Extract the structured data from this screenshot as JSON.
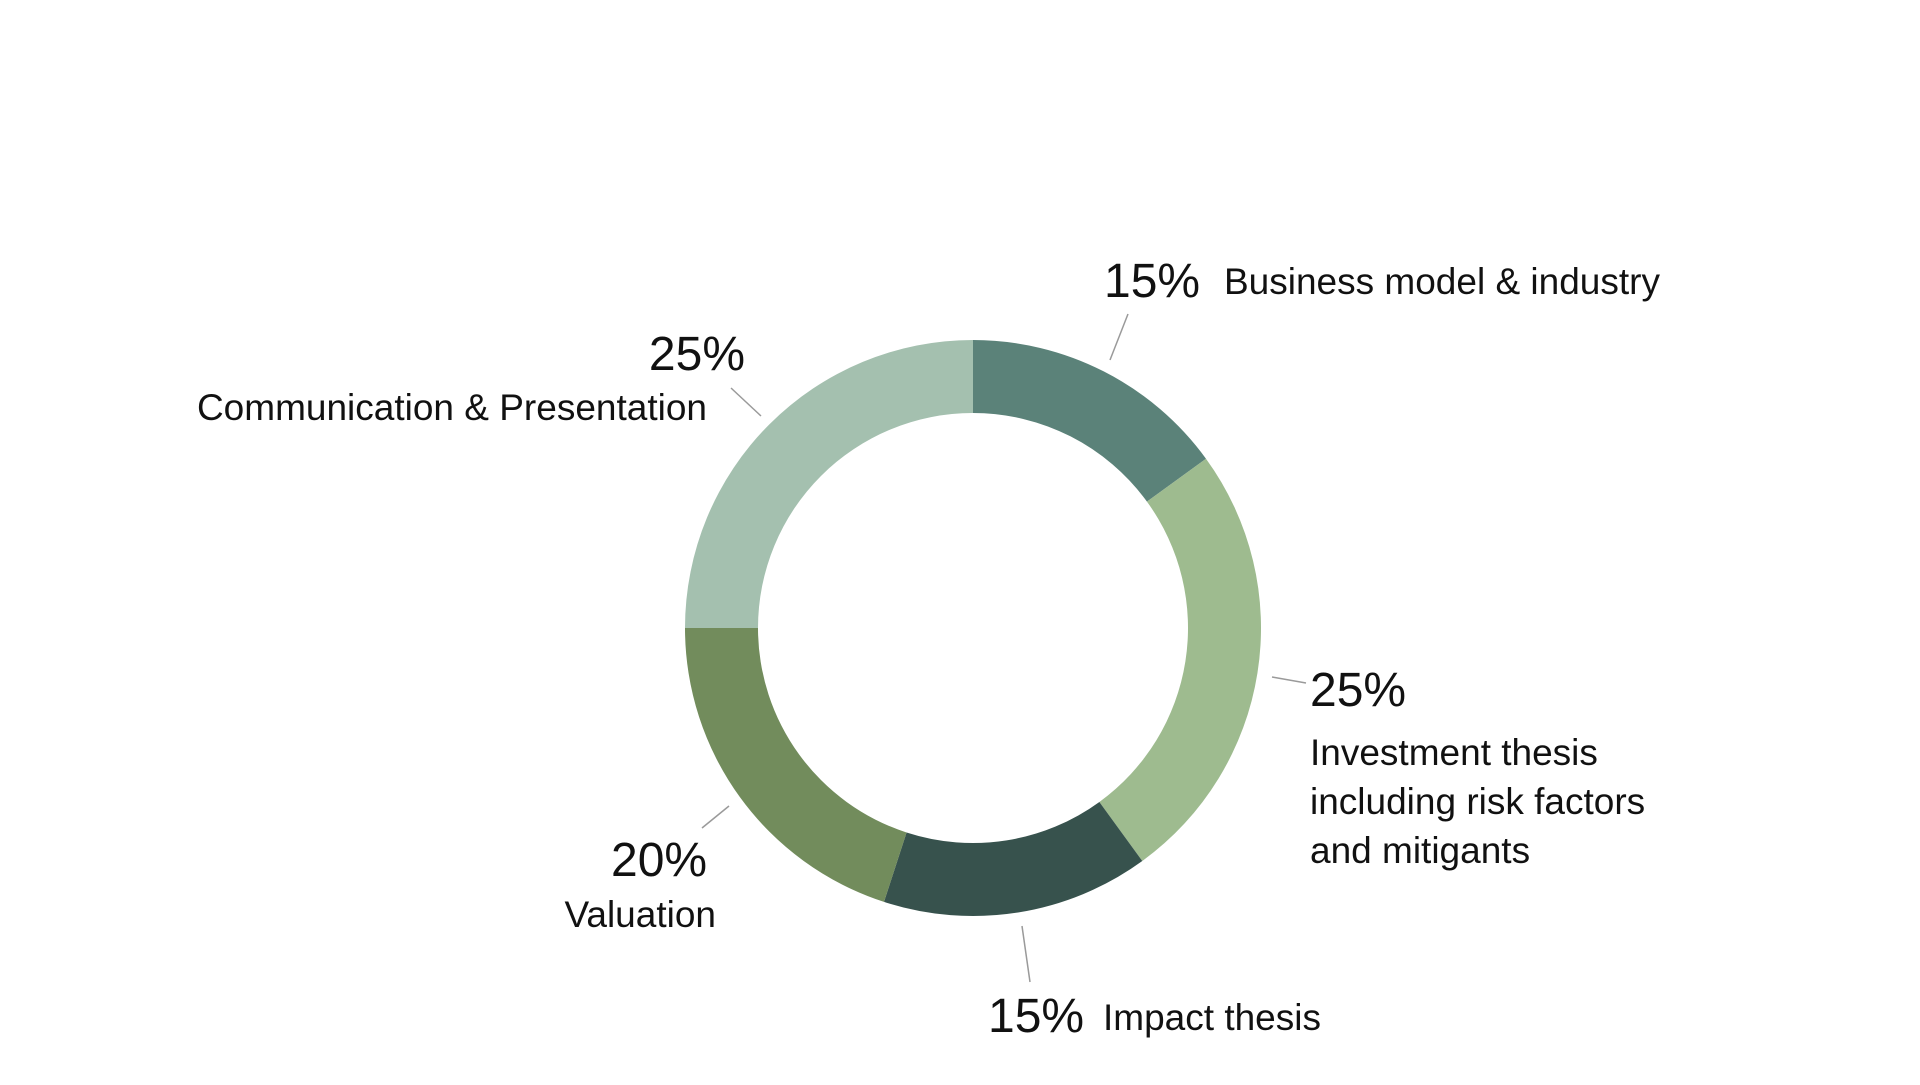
{
  "chart_data": {
    "type": "pie",
    "variant": "donut",
    "title": "",
    "slices": [
      {
        "label": "Business model & industry",
        "value": 15,
        "value_label": "15%",
        "color": "#5b8279"
      },
      {
        "label": "Investment thesis including risk factors and mitigants",
        "value": 25,
        "value_label": "25%",
        "color": "#9ebb8f"
      },
      {
        "label": "Impact thesis",
        "value": 15,
        "value_label": "15%",
        "color": "#37524d"
      },
      {
        "label": "Valuation",
        "value": 20,
        "value_label": "20%",
        "color": "#728c5c"
      },
      {
        "label": "Communication & Presentation",
        "value": 25,
        "value_label": "25%",
        "color": "#a4c0af"
      }
    ],
    "legend": "none",
    "start_angle": "12 o'clock",
    "direction": "clockwise"
  }
}
